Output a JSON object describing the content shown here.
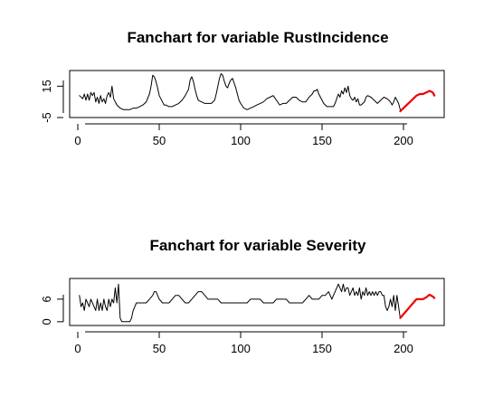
{
  "chart_data": [
    {
      "type": "line",
      "title": "Fanchart for variable RustIncidence",
      "xlabel": "",
      "ylabel": "",
      "xlim": [
        -5,
        225
      ],
      "ylim": [
        -5,
        25
      ],
      "x_ticks": [
        0,
        50,
        100,
        150,
        200
      ],
      "x_tick_labels": [
        "0",
        "50",
        "100",
        "150",
        "200"
      ],
      "y_ticks": [
        -5,
        15
      ],
      "y_tick_labels": [
        "-5",
        "15"
      ],
      "grid": false,
      "colors": {
        "observed": "#000000",
        "forecast": "#ee0000"
      },
      "series": [
        {
          "role": "observed",
          "x": [
            1,
            3,
            4,
            5,
            6,
            7,
            8,
            9,
            10,
            11,
            12,
            13,
            14,
            15,
            16,
            17,
            18,
            19,
            20,
            21,
            22,
            24,
            26,
            28,
            30,
            32,
            34,
            36,
            38,
            40,
            42,
            44,
            45,
            46,
            47,
            48,
            49,
            50,
            51,
            52,
            53,
            54,
            56,
            58,
            60,
            62,
            64,
            66,
            68,
            69,
            70,
            71,
            72,
            73,
            74,
            76,
            78,
            80,
            82,
            84,
            85,
            86,
            87,
            88,
            89,
            90,
            91,
            92,
            93,
            94,
            95,
            96,
            97,
            98,
            99,
            100,
            102,
            104,
            106,
            108,
            110,
            112,
            114,
            116,
            118,
            120,
            122,
            124,
            126,
            128,
            130,
            132,
            134,
            136,
            138,
            140,
            142,
            144,
            145,
            146,
            147,
            148,
            149,
            150,
            151,
            152,
            153,
            154,
            155,
            156,
            157,
            158,
            159,
            160,
            161,
            162,
            163,
            164,
            165,
            166,
            167,
            168,
            169,
            170,
            171,
            172,
            173,
            174,
            175,
            176,
            177,
            178,
            180,
            182,
            184,
            186,
            188,
            190,
            191,
            192,
            193,
            194,
            195,
            196,
            197,
            198
          ],
          "y": [
            9,
            7,
            10,
            6,
            10,
            6,
            11,
            9,
            11,
            5,
            8,
            4,
            9,
            5,
            7,
            4,
            9,
            11,
            8,
            15,
            7,
            3,
            1,
            0,
            0,
            0,
            1,
            1,
            2,
            3,
            5,
            10,
            15,
            22,
            21,
            18,
            14,
            9,
            7,
            5,
            3,
            3,
            2,
            2,
            3,
            4,
            6,
            9,
            13,
            19,
            21,
            18,
            13,
            9,
            6,
            5,
            4,
            4,
            4,
            6,
            10,
            15,
            20,
            23,
            22,
            18,
            15,
            14,
            17,
            19,
            20,
            17,
            14,
            10,
            6,
            4,
            1,
            0,
            1,
            2,
            3,
            4,
            5,
            7,
            8,
            9,
            6,
            3,
            4,
            4,
            6,
            8,
            8,
            6,
            5,
            5,
            8,
            10,
            12,
            12,
            13,
            10,
            8,
            6,
            4,
            3,
            2,
            2,
            2,
            2,
            2,
            4,
            7,
            10,
            8,
            12,
            10,
            14,
            11,
            15,
            9,
            7,
            6,
            8,
            5,
            7,
            3,
            3,
            4,
            5,
            8,
            9,
            8,
            6,
            4,
            6,
            8,
            7,
            6,
            5,
            3,
            5,
            8,
            6,
            4,
            0
          ],
          "color": "#000000"
        },
        {
          "role": "forecast",
          "x": [
            198,
            200,
            202,
            204,
            206,
            208,
            210,
            212,
            214,
            216,
            218,
            219
          ],
          "y": [
            -1,
            1,
            3,
            5,
            7,
            9,
            10,
            10,
            11,
            12,
            11,
            9
          ],
          "color": "#ee0000"
        }
      ]
    },
    {
      "type": "line",
      "title": "Fanchart for variable Severity",
      "xlabel": "",
      "ylabel": "",
      "xlim": [
        -5,
        225
      ],
      "ylim": [
        -1,
        11.5
      ],
      "x_ticks": [
        0,
        50,
        100,
        150,
        200
      ],
      "x_tick_labels": [
        "0",
        "50",
        "100",
        "150",
        "200"
      ],
      "y_ticks": [
        0,
        6
      ],
      "y_tick_labels": [
        "0",
        "6"
      ],
      "grid": false,
      "colors": {
        "observed": "#000000",
        "forecast": "#ee0000"
      },
      "series": [
        {
          "role": "observed",
          "x": [
            1,
            2,
            3,
            4,
            5,
            6,
            7,
            8,
            9,
            10,
            11,
            12,
            13,
            14,
            15,
            16,
            17,
            18,
            19,
            20,
            21,
            22,
            23,
            24,
            25,
            26,
            27,
            28,
            29,
            30,
            31,
            32,
            33,
            34,
            35,
            36,
            38,
            40,
            42,
            44,
            46,
            47,
            48,
            49,
            50,
            52,
            54,
            56,
            58,
            60,
            62,
            64,
            66,
            68,
            70,
            72,
            74,
            76,
            78,
            80,
            82,
            84,
            86,
            88,
            90,
            92,
            94,
            96,
            98,
            100,
            102,
            104,
            106,
            108,
            110,
            112,
            114,
            116,
            118,
            120,
            122,
            124,
            126,
            128,
            130,
            132,
            134,
            136,
            138,
            140,
            142,
            144,
            146,
            148,
            150,
            152,
            154,
            156,
            158,
            159,
            160,
            161,
            162,
            163,
            164,
            165,
            166,
            167,
            168,
            169,
            170,
            171,
            172,
            173,
            174,
            175,
            176,
            177,
            178,
            179,
            180,
            181,
            182,
            183,
            184,
            185,
            186,
            187,
            188,
            189,
            190,
            191,
            192,
            193,
            194,
            195,
            196,
            197,
            198
          ],
          "y": [
            7,
            4,
            5,
            3,
            6,
            5,
            4,
            6,
            5,
            4,
            3,
            6,
            3,
            5,
            3,
            6,
            4,
            3,
            6,
            4,
            6,
            5,
            9,
            5,
            10,
            1,
            0,
            0,
            0,
            0,
            0,
            0,
            1,
            3,
            4,
            5,
            5,
            5,
            5,
            6,
            7,
            8,
            8,
            7,
            6,
            5,
            5,
            5,
            6,
            7,
            7,
            6,
            5,
            5,
            6,
            7,
            8,
            8,
            7,
            6,
            6,
            6,
            6,
            5,
            5,
            5,
            5,
            5,
            5,
            5,
            5,
            5,
            6,
            6,
            6,
            6,
            5,
            5,
            5,
            5,
            6,
            6,
            6,
            6,
            5,
            5,
            5,
            5,
            5,
            6,
            7,
            6,
            6,
            6,
            7,
            7,
            8,
            6,
            8,
            9,
            10,
            9,
            8,
            10,
            8,
            9,
            9,
            7,
            8,
            9,
            7,
            8,
            7,
            9,
            6,
            8,
            7,
            9,
            7,
            8,
            7,
            8,
            7,
            8,
            7,
            8,
            8,
            7,
            7,
            4,
            3,
            4,
            6,
            4,
            7,
            3,
            7,
            4,
            1
          ],
          "color": "#000000"
        },
        {
          "role": "forecast",
          "x": [
            198,
            199,
            200,
            202,
            204,
            206,
            208,
            210,
            212,
            214,
            216,
            218,
            219
          ],
          "y": [
            1,
            1.5,
            2,
            3,
            4,
            5,
            6,
            6,
            6,
            6.5,
            7.2,
            6.7,
            6.3
          ],
          "color": "#ee0000"
        }
      ]
    }
  ]
}
